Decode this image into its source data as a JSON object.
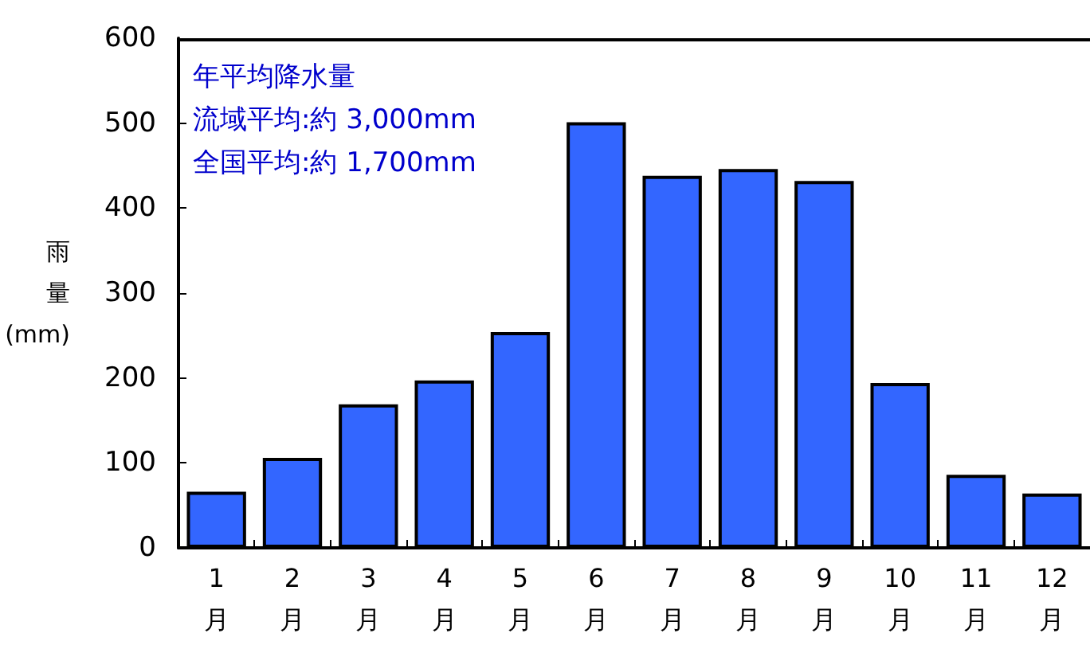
{
  "chart_data": {
    "type": "bar",
    "ylabel": "雨量(mm)",
    "categories": [
      "1\n月",
      "2\n月",
      "3\n月",
      "4\n月",
      "5\n月",
      "6\n月",
      "7\n月",
      "8\n月",
      "9\n月",
      "10\n月",
      "11\n月",
      "12\n月"
    ],
    "values": [
      66,
      106,
      169,
      197,
      254,
      501,
      438,
      446,
      432,
      194,
      86,
      64
    ],
    "color": "#3366ff",
    "ylim": [
      0,
      600
    ],
    "yticks": [
      0,
      100,
      200,
      300,
      400,
      500,
      600
    ],
    "grid": false,
    "annotations": [
      "年平均降水量",
      "流域平均:約 3,000mm",
      "全国平均:約 1,700mm"
    ]
  }
}
